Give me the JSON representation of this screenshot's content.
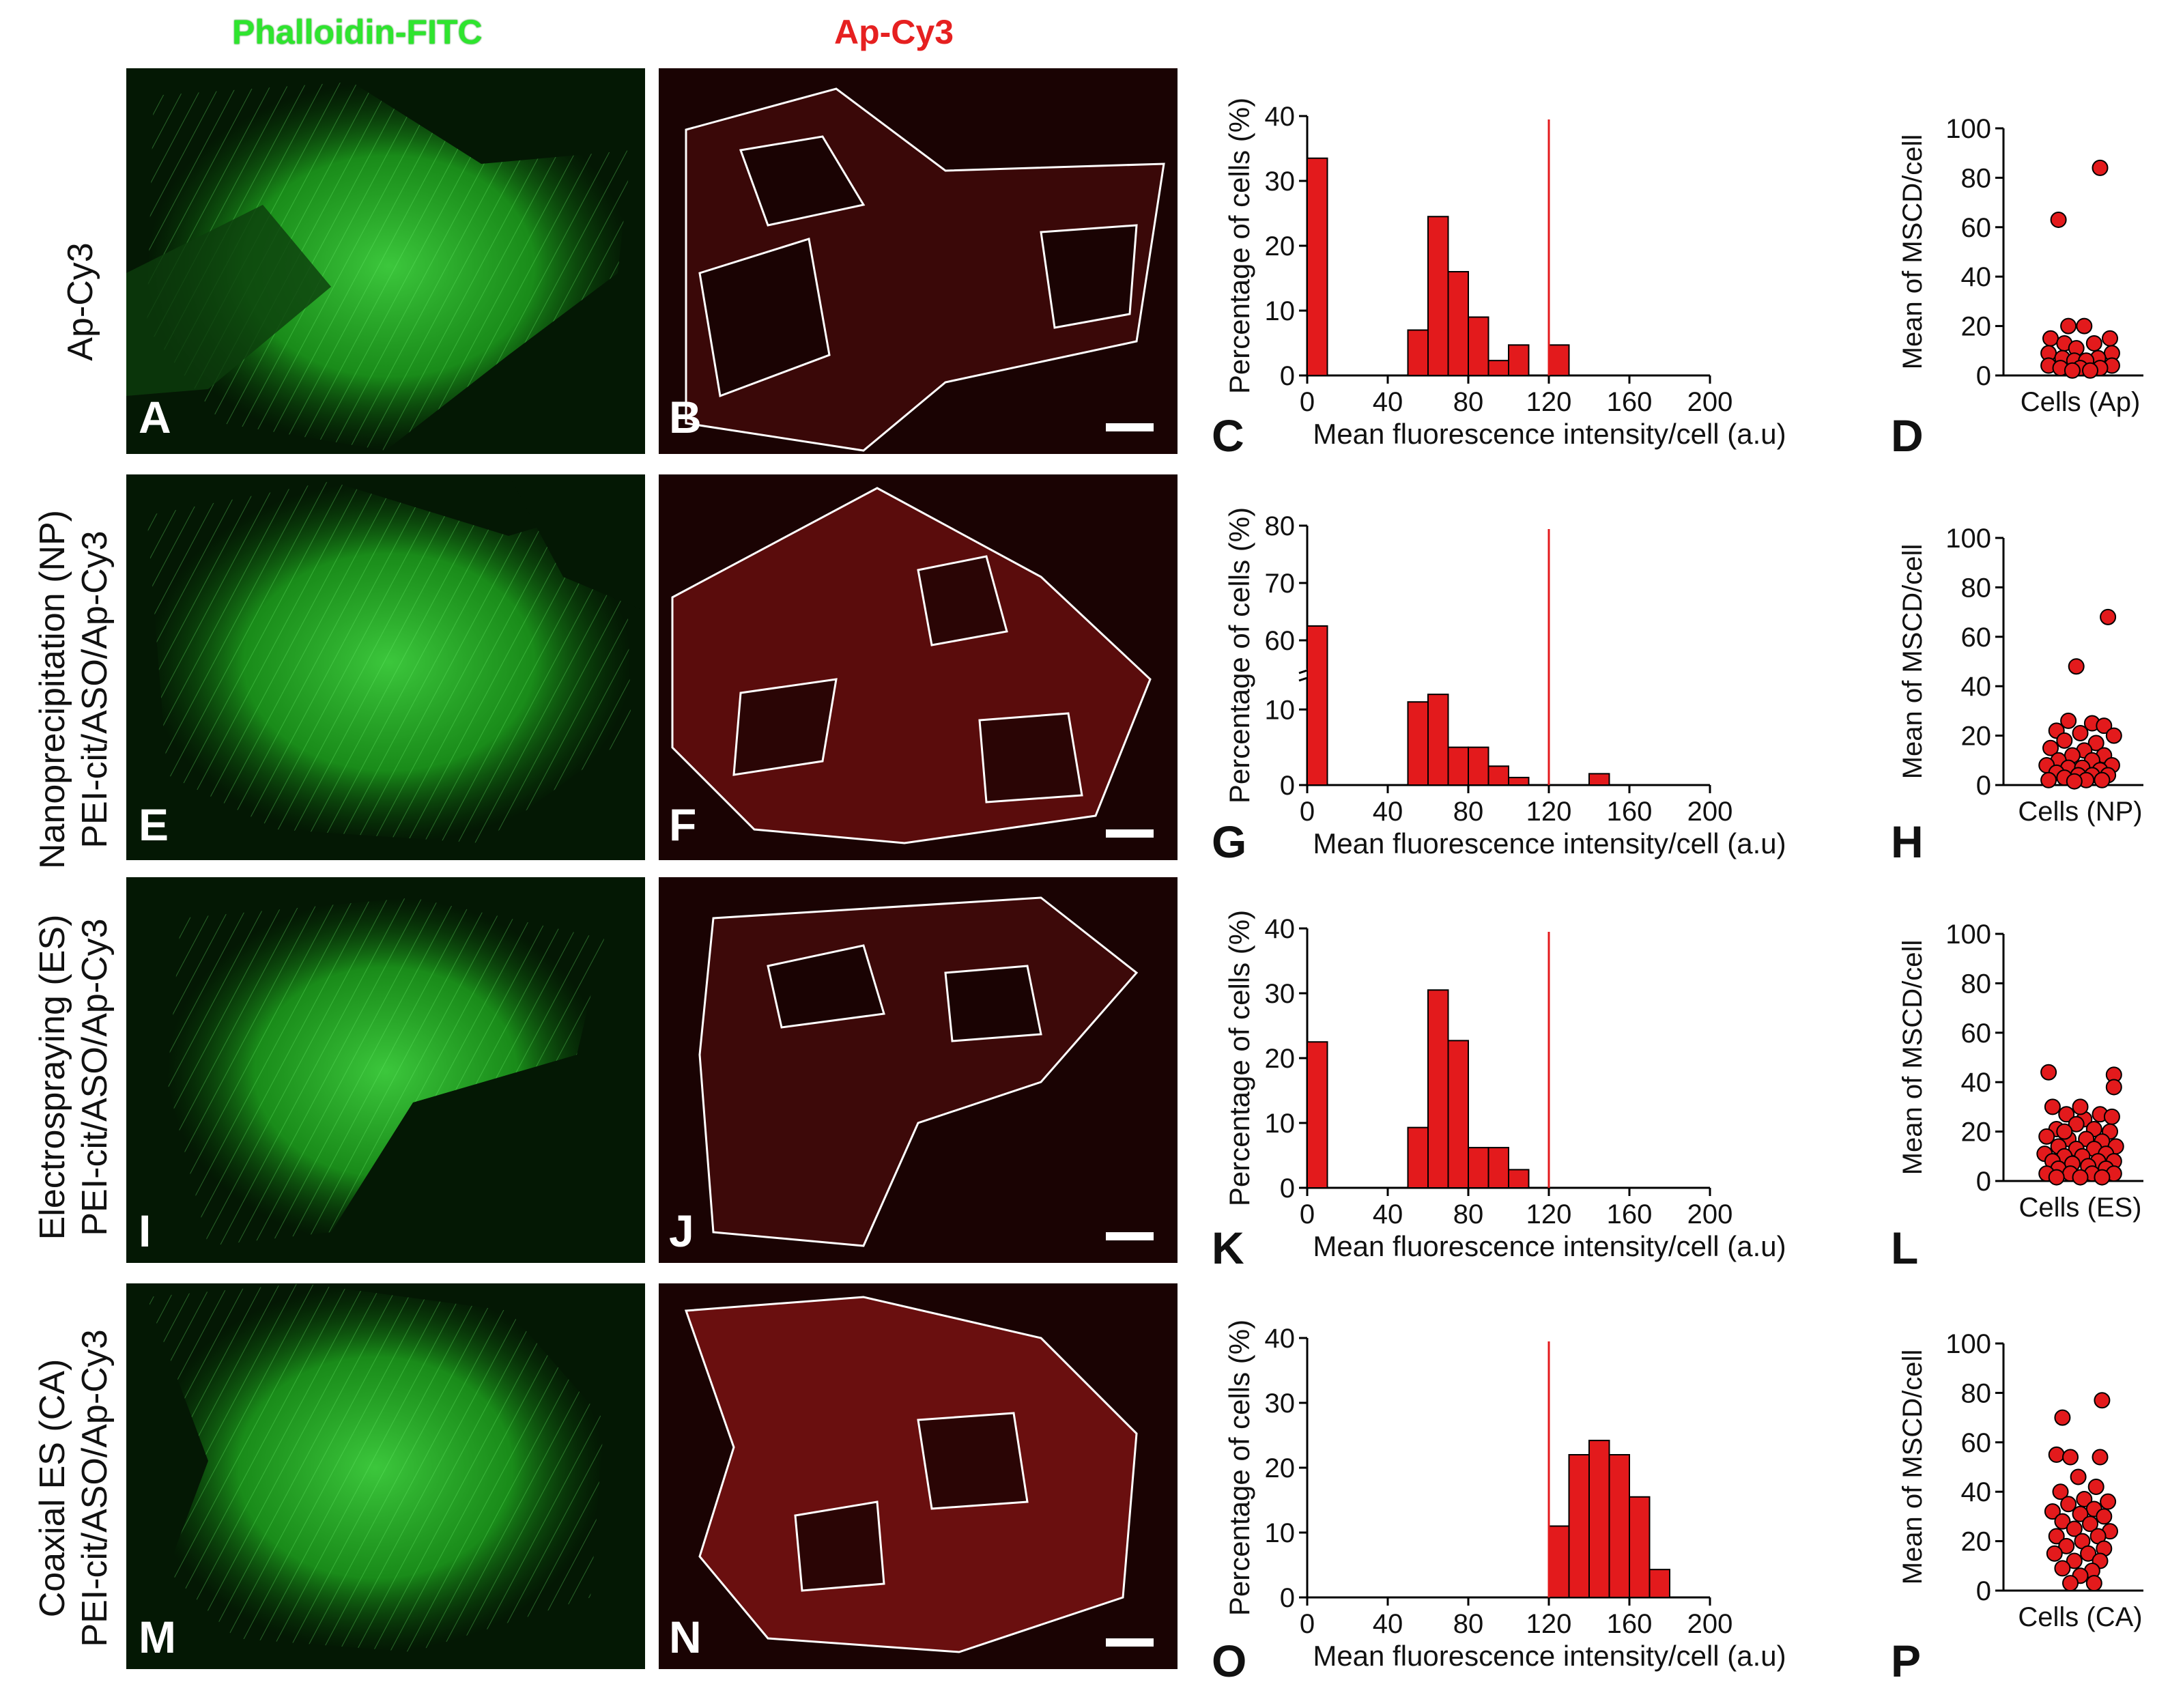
{
  "columns": {
    "left": "Phalloidin-FITC",
    "middle": "Ap-Cy3"
  },
  "rows": [
    {
      "label_lines": [
        "Ap-Cy3"
      ],
      "letters": [
        "A",
        "B",
        "C",
        "D"
      ]
    },
    {
      "label_lines": [
        "Nanoprecipitation (NP)",
        "PEI-cit/ASO/Ap-Cy3"
      ],
      "letters": [
        "E",
        "F",
        "G",
        "H"
      ]
    },
    {
      "label_lines": [
        "Electrospraying (ES)",
        "PEI-cit/ASO/Ap-Cy3"
      ],
      "letters": [
        "I",
        "J",
        "K",
        "L"
      ]
    },
    {
      "label_lines": [
        "Coaxial ES (CA)",
        "PEI-cit/ASO/Ap-Cy3"
      ],
      "letters": [
        "M",
        "N",
        "O",
        "P"
      ]
    }
  ],
  "colors": {
    "bar": "#e31a1c",
    "threshold_line": "#e31a1c",
    "point_fill": "#e31a1c",
    "green": "#22c322"
  },
  "chart_data": [
    {
      "panel": "C",
      "type": "bar",
      "xlabel": "Mean fluorescence intensity/cell (a.u)",
      "ylabel": "Percentage of cells (%)",
      "xlim": [
        0,
        200
      ],
      "ylim": [
        0,
        40
      ],
      "xticks": [
        0,
        40,
        80,
        120,
        160,
        200
      ],
      "yticks": [
        0,
        10,
        20,
        30,
        40
      ],
      "bin_width": 10,
      "bins": [
        {
          "x0": 0,
          "value": 33.5
        },
        {
          "x0": 50,
          "value": 7
        },
        {
          "x0": 60,
          "value": 24.5
        },
        {
          "x0": 70,
          "value": 16
        },
        {
          "x0": 80,
          "value": 9
        },
        {
          "x0": 90,
          "value": 2.3
        },
        {
          "x0": 100,
          "value": 4.7
        },
        {
          "x0": 120,
          "value": 4.7
        }
      ],
      "threshold_x": 120
    },
    {
      "panel": "G",
      "type": "bar",
      "xlabel": "Mean fluorescence intensity/cell (a.u)",
      "ylabel": "Percentage of cells (%)",
      "xlim": [
        0,
        200
      ],
      "broken_axis": true,
      "ylim_lower": [
        0,
        14
      ],
      "ylim_upper": [
        55,
        80
      ],
      "yticks_lower": [
        0,
        10
      ],
      "yticks_upper": [
        60,
        70,
        80
      ],
      "xticks": [
        0,
        40,
        80,
        120,
        160,
        200
      ],
      "bin_width": 10,
      "bins": [
        {
          "x0": 0,
          "value": 62.5
        },
        {
          "x0": 50,
          "value": 11
        },
        {
          "x0": 60,
          "value": 12
        },
        {
          "x0": 70,
          "value": 5
        },
        {
          "x0": 80,
          "value": 5
        },
        {
          "x0": 90,
          "value": 2.5
        },
        {
          "x0": 100,
          "value": 1
        },
        {
          "x0": 140,
          "value": 1.5
        }
      ],
      "threshold_x": 120
    },
    {
      "panel": "K",
      "type": "bar",
      "xlabel": "Mean fluorescence intensity/cell (a.u)",
      "ylabel": "Percentage of cells (%)",
      "xlim": [
        0,
        200
      ],
      "ylim": [
        0,
        40
      ],
      "xticks": [
        0,
        40,
        80,
        120,
        160,
        200
      ],
      "yticks": [
        0,
        10,
        20,
        30,
        40
      ],
      "bin_width": 10,
      "bins": [
        {
          "x0": 0,
          "value": 22.5
        },
        {
          "x0": 50,
          "value": 9.3
        },
        {
          "x0": 60,
          "value": 30.5
        },
        {
          "x0": 70,
          "value": 22.7
        },
        {
          "x0": 80,
          "value": 6.2
        },
        {
          "x0": 90,
          "value": 6.2
        },
        {
          "x0": 100,
          "value": 2.8
        }
      ],
      "threshold_x": 120
    },
    {
      "panel": "O",
      "type": "bar",
      "xlabel": "Mean fluorescence intensity/cell (a.u)",
      "ylabel": "Percentage of cells (%)",
      "xlim": [
        0,
        200
      ],
      "ylim": [
        0,
        40
      ],
      "xticks": [
        0,
        40,
        80,
        120,
        160,
        200
      ],
      "yticks": [
        0,
        10,
        20,
        30,
        40
      ],
      "bin_width": 10,
      "bins": [
        {
          "x0": 120,
          "value": 11
        },
        {
          "x0": 130,
          "value": 22
        },
        {
          "x0": 140,
          "value": 24.2
        },
        {
          "x0": 150,
          "value": 22
        },
        {
          "x0": 160,
          "value": 15.5
        },
        {
          "x0": 170,
          "value": 4.3
        }
      ],
      "threshold_x": 120
    },
    {
      "panel": "D",
      "type": "scatter",
      "xlabel": "Cells (Ap)",
      "ylabel": "Mean of MSCD/cell",
      "ylim": [
        0,
        100
      ],
      "yticks": [
        0,
        20,
        40,
        60,
        80,
        100
      ],
      "points": [
        {
          "x": 0.5,
          "y": 84
        },
        {
          "x": -0.55,
          "y": 63
        },
        {
          "x": -0.3,
          "y": 20
        },
        {
          "x": 0.1,
          "y": 20
        },
        {
          "x": -0.75,
          "y": 15
        },
        {
          "x": 0.75,
          "y": 15
        },
        {
          "x": -0.4,
          "y": 13
        },
        {
          "x": 0.35,
          "y": 13
        },
        {
          "x": -0.1,
          "y": 11
        },
        {
          "x": -0.8,
          "y": 9
        },
        {
          "x": 0.8,
          "y": 9
        },
        {
          "x": -0.45,
          "y": 7
        },
        {
          "x": 0.45,
          "y": 7
        },
        {
          "x": -0.15,
          "y": 6
        },
        {
          "x": 0.15,
          "y": 6
        },
        {
          "x": -0.8,
          "y": 4
        },
        {
          "x": 0.8,
          "y": 4
        },
        {
          "x": -0.5,
          "y": 3
        },
        {
          "x": 0.0,
          "y": 3
        },
        {
          "x": 0.5,
          "y": 3
        },
        {
          "x": -0.2,
          "y": 2
        },
        {
          "x": 0.25,
          "y": 2
        }
      ]
    },
    {
      "panel": "H",
      "type": "scatter",
      "xlabel": "Cells (NP)",
      "ylabel": "Mean of MSCD/cell",
      "ylim": [
        0,
        100
      ],
      "yticks": [
        0,
        20,
        40,
        60,
        80,
        100
      ],
      "points": [
        {
          "x": 0.7,
          "y": 68
        },
        {
          "x": -0.1,
          "y": 48
        },
        {
          "x": -0.3,
          "y": 26
        },
        {
          "x": 0.3,
          "y": 25
        },
        {
          "x": 0.6,
          "y": 24
        },
        {
          "x": -0.6,
          "y": 22
        },
        {
          "x": 0.0,
          "y": 21
        },
        {
          "x": 0.85,
          "y": 20
        },
        {
          "x": -0.4,
          "y": 18
        },
        {
          "x": 0.4,
          "y": 17
        },
        {
          "x": -0.75,
          "y": 15
        },
        {
          "x": 0.1,
          "y": 14
        },
        {
          "x": -0.2,
          "y": 12
        },
        {
          "x": 0.6,
          "y": 12
        },
        {
          "x": -0.55,
          "y": 10
        },
        {
          "x": 0.3,
          "y": 10
        },
        {
          "x": -0.85,
          "y": 8
        },
        {
          "x": 0.8,
          "y": 8
        },
        {
          "x": -0.3,
          "y": 7
        },
        {
          "x": 0.05,
          "y": 7
        },
        {
          "x": 0.5,
          "y": 6
        },
        {
          "x": -0.6,
          "y": 5
        },
        {
          "x": -0.05,
          "y": 4
        },
        {
          "x": 0.3,
          "y": 4
        },
        {
          "x": 0.7,
          "y": 4
        },
        {
          "x": -0.4,
          "y": 3
        },
        {
          "x": -0.8,
          "y": 2
        },
        {
          "x": 0.15,
          "y": 2
        },
        {
          "x": 0.55,
          "y": 2
        },
        {
          "x": -0.15,
          "y": 1.5
        }
      ]
    },
    {
      "panel": "L",
      "type": "scatter",
      "xlabel": "Cells (ES)",
      "ylabel": "Mean of MSCD/cell",
      "ylim": [
        0,
        100
      ],
      "yticks": [
        0,
        20,
        40,
        60,
        80,
        100
      ],
      "points": [
        {
          "x": -0.8,
          "y": 44
        },
        {
          "x": 0.85,
          "y": 43
        },
        {
          "x": 0.85,
          "y": 38
        },
        {
          "x": -0.7,
          "y": 30
        },
        {
          "x": -0.35,
          "y": 27
        },
        {
          "x": 0.5,
          "y": 27
        },
        {
          "x": 0.8,
          "y": 26
        },
        {
          "x": 0.1,
          "y": 25
        },
        {
          "x": -0.1,
          "y": 23
        },
        {
          "x": -0.6,
          "y": 21
        },
        {
          "x": 0.35,
          "y": 21
        },
        {
          "x": 0.75,
          "y": 20
        },
        {
          "x": -0.85,
          "y": 18
        },
        {
          "x": -0.3,
          "y": 17
        },
        {
          "x": 0.15,
          "y": 17
        },
        {
          "x": 0.55,
          "y": 16
        },
        {
          "x": -0.55,
          "y": 14
        },
        {
          "x": 0.9,
          "y": 14
        },
        {
          "x": -0.1,
          "y": 13
        },
        {
          "x": 0.35,
          "y": 13
        },
        {
          "x": -0.9,
          "y": 11
        },
        {
          "x": 0.65,
          "y": 11
        },
        {
          "x": -0.4,
          "y": 10
        },
        {
          "x": 0.05,
          "y": 10
        },
        {
          "x": -0.7,
          "y": 8
        },
        {
          "x": 0.45,
          "y": 8
        },
        {
          "x": 0.85,
          "y": 8
        },
        {
          "x": -0.2,
          "y": 7
        },
        {
          "x": 0.2,
          "y": 6
        },
        {
          "x": -0.55,
          "y": 5
        },
        {
          "x": 0.65,
          "y": 5
        },
        {
          "x": -0.85,
          "y": 3
        },
        {
          "x": -0.25,
          "y": 3
        },
        {
          "x": 0.3,
          "y": 3
        },
        {
          "x": 0.85,
          "y": 3
        },
        {
          "x": -0.6,
          "y": 1.5
        },
        {
          "x": 0.0,
          "y": 1.5
        },
        {
          "x": 0.55,
          "y": 1.5
        },
        {
          "x": -0.4,
          "y": 20
        },
        {
          "x": 0.0,
          "y": 30
        }
      ]
    },
    {
      "panel": "P",
      "type": "scatter",
      "xlabel": "Cells (CA)",
      "ylabel": "Mean of MSCD/cell",
      "ylim": [
        0,
        100
      ],
      "yticks": [
        0,
        20,
        40,
        60,
        80,
        100
      ],
      "points": [
        {
          "x": 0.55,
          "y": 77
        },
        {
          "x": -0.45,
          "y": 70
        },
        {
          "x": -0.6,
          "y": 55
        },
        {
          "x": -0.25,
          "y": 54
        },
        {
          "x": 0.5,
          "y": 54
        },
        {
          "x": -0.05,
          "y": 46
        },
        {
          "x": 0.4,
          "y": 42
        },
        {
          "x": -0.5,
          "y": 40
        },
        {
          "x": 0.1,
          "y": 37
        },
        {
          "x": 0.7,
          "y": 36
        },
        {
          "x": -0.3,
          "y": 35
        },
        {
          "x": 0.35,
          "y": 33
        },
        {
          "x": -0.7,
          "y": 32
        },
        {
          "x": 0.0,
          "y": 31
        },
        {
          "x": 0.6,
          "y": 30
        },
        {
          "x": -0.45,
          "y": 28
        },
        {
          "x": 0.25,
          "y": 27
        },
        {
          "x": -0.15,
          "y": 25
        },
        {
          "x": 0.75,
          "y": 24
        },
        {
          "x": -0.6,
          "y": 22
        },
        {
          "x": 0.45,
          "y": 22
        },
        {
          "x": 0.05,
          "y": 20
        },
        {
          "x": -0.35,
          "y": 18
        },
        {
          "x": 0.6,
          "y": 17
        },
        {
          "x": -0.65,
          "y": 15
        },
        {
          "x": 0.2,
          "y": 15
        },
        {
          "x": -0.15,
          "y": 12
        },
        {
          "x": 0.5,
          "y": 12
        },
        {
          "x": -0.45,
          "y": 9
        },
        {
          "x": 0.3,
          "y": 8
        },
        {
          "x": 0.0,
          "y": 6
        },
        {
          "x": -0.25,
          "y": 3
        },
        {
          "x": 0.35,
          "y": 3
        }
      ]
    }
  ]
}
